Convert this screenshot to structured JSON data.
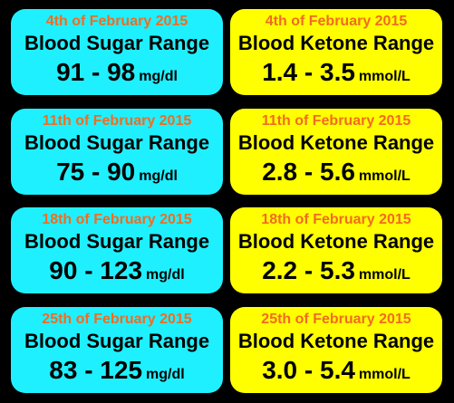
{
  "colors": {
    "background": "#000000",
    "sugar_card": "#1ff0ff",
    "ketone_card": "#ffff00",
    "date_text": "#f26b21",
    "main_text": "#000000"
  },
  "rows": [
    {
      "date": "4th of February 2015",
      "sugar": {
        "title": "Blood Sugar Range",
        "value": "91 - 98",
        "unit": "mg/dl"
      },
      "ketone": {
        "title": "Blood Ketone Range",
        "value": "1.4 - 3.5",
        "unit": "mmol/L"
      }
    },
    {
      "date": "11th of February 2015",
      "sugar": {
        "title": "Blood Sugar Range",
        "value": "75 - 90",
        "unit": "mg/dl"
      },
      "ketone": {
        "title": "Blood Ketone Range",
        "value": "2.8 - 5.6",
        "unit": "mmol/L"
      }
    },
    {
      "date": "18th of February 2015",
      "sugar": {
        "title": "Blood Sugar Range",
        "value": "90 - 123",
        "unit": "mg/dl"
      },
      "ketone": {
        "title": "Blood Ketone Range",
        "value": "2.2 - 5.3",
        "unit": "mmol/L"
      }
    },
    {
      "date": "25th of February 2015",
      "sugar": {
        "title": "Blood Sugar Range",
        "value": "83 - 125",
        "unit": "mg/dl"
      },
      "ketone": {
        "title": "Blood Ketone Range",
        "value": "3.0 - 5.4",
        "unit": "mmol/L"
      }
    }
  ]
}
